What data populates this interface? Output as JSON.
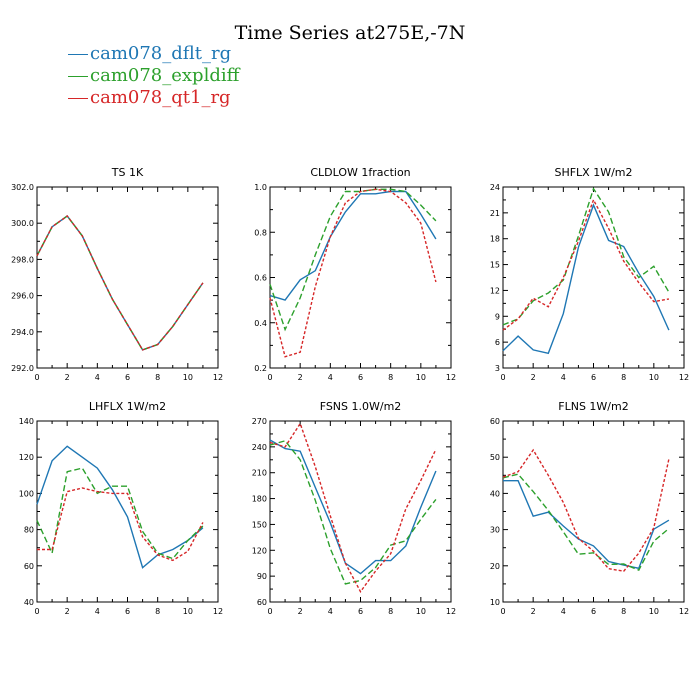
{
  "title": "Time Series at275E,-7N",
  "legend": [
    {
      "label": "cam078_dflt_rg",
      "color": "#1f77b4"
    },
    {
      "label": "cam078_expldiff",
      "color": "#2ca02c"
    },
    {
      "label": "cam078_qt1_rg",
      "color": "#d62728"
    }
  ],
  "chart_data": [
    {
      "type": "line",
      "title": "TS   1K",
      "x": [
        0,
        1,
        2,
        3,
        4,
        5,
        6,
        7,
        8,
        9,
        10,
        11
      ],
      "xticks": [
        0,
        2,
        4,
        6,
        8,
        10,
        12
      ],
      "xlim": [
        0,
        12
      ],
      "ylim": [
        292,
        302
      ],
      "yticks": [
        "292.0",
        "294.0",
        "296.0",
        "298.0",
        "300.0",
        "302.0"
      ],
      "series": [
        {
          "name": "cam078_dflt_rg",
          "values": [
            298.2,
            299.8,
            300.4,
            299.3,
            297.5,
            295.8,
            294.4,
            293.0,
            293.3,
            294.3,
            295.5,
            296.7
          ]
        },
        {
          "name": "cam078_expldiff",
          "values": [
            298.2,
            299.8,
            300.4,
            299.3,
            297.5,
            295.8,
            294.4,
            293.0,
            293.3,
            294.3,
            295.5,
            296.7
          ]
        },
        {
          "name": "cam078_qt1_rg",
          "values": [
            298.2,
            299.8,
            300.4,
            299.3,
            297.5,
            295.8,
            294.4,
            293.0,
            293.3,
            294.3,
            295.5,
            296.7
          ]
        }
      ]
    },
    {
      "type": "line",
      "title": "CLDLOW   1fraction",
      "x": [
        0,
        1,
        2,
        3,
        4,
        5,
        6,
        7,
        8,
        9,
        10,
        11
      ],
      "xticks": [
        0,
        2,
        4,
        6,
        8,
        10,
        12
      ],
      "xlim": [
        0,
        12
      ],
      "ylim": [
        0.2,
        1.0
      ],
      "yticks": [
        "0.2",
        "0.4",
        "0.6",
        "0.8",
        "1.0"
      ],
      "series": [
        {
          "name": "cam078_dflt_rg",
          "values": [
            0.52,
            0.5,
            0.59,
            0.63,
            0.78,
            0.89,
            0.97,
            0.97,
            0.98,
            0.98,
            0.88,
            0.77
          ]
        },
        {
          "name": "cam078_expldiff",
          "values": [
            0.57,
            0.37,
            0.51,
            0.7,
            0.87,
            0.98,
            0.98,
            0.99,
            0.99,
            0.98,
            0.92,
            0.85
          ]
        },
        {
          "name": "cam078_qt1_rg",
          "values": [
            0.51,
            0.25,
            0.27,
            0.56,
            0.78,
            0.93,
            0.98,
            0.99,
            0.98,
            0.93,
            0.84,
            0.58
          ]
        }
      ]
    },
    {
      "type": "line",
      "title": "SHFLX   1W/m2",
      "x": [
        0,
        1,
        2,
        3,
        4,
        5,
        6,
        7,
        8,
        9,
        10,
        11
      ],
      "xticks": [
        0,
        2,
        4,
        6,
        8,
        10,
        12
      ],
      "xlim": [
        0,
        12
      ],
      "ylim": [
        3,
        24
      ],
      "yticks": [
        "3",
        "6",
        "9",
        "12",
        "15",
        "18",
        "21",
        "24"
      ],
      "series": [
        {
          "name": "cam078_dflt_rg",
          "values": [
            5.0,
            6.7,
            5.1,
            4.7,
            9.3,
            17.0,
            21.9,
            17.8,
            17.1,
            14.0,
            11.3,
            7.4
          ]
        },
        {
          "name": "cam078_expldiff",
          "values": [
            8.0,
            8.7,
            10.8,
            11.7,
            13.2,
            18.3,
            23.8,
            21.1,
            15.9,
            13.5,
            14.8,
            11.8
          ]
        },
        {
          "name": "cam078_qt1_rg",
          "values": [
            7.4,
            8.7,
            11.1,
            10.1,
            13.5,
            17.7,
            22.5,
            19.2,
            15.4,
            12.9,
            10.7,
            11.0
          ]
        }
      ]
    },
    {
      "type": "line",
      "title": "LHFLX   1W/m2",
      "x": [
        0,
        1,
        2,
        3,
        4,
        5,
        6,
        7,
        8,
        9,
        10,
        11
      ],
      "xticks": [
        0,
        2,
        4,
        6,
        8,
        10,
        12
      ],
      "xlim": [
        0,
        12
      ],
      "ylim": [
        40,
        140
      ],
      "yticks": [
        "40",
        "60",
        "80",
        "100",
        "120",
        "140"
      ],
      "series": [
        {
          "name": "cam078_dflt_rg",
          "values": [
            94,
            118,
            126,
            120,
            114,
            102,
            87,
            59,
            66,
            69,
            74,
            81
          ]
        },
        {
          "name": "cam078_expldiff",
          "values": [
            85,
            67,
            112,
            114,
            100,
            104,
            104,
            79,
            67,
            64,
            74,
            82
          ]
        },
        {
          "name": "cam078_qt1_rg",
          "values": [
            69,
            69,
            101,
            103,
            101,
            100,
            100,
            76,
            66,
            63,
            68,
            84
          ]
        }
      ]
    },
    {
      "type": "line",
      "title": "FSNS   1.0W/m2",
      "x": [
        0,
        1,
        2,
        3,
        4,
        5,
        6,
        7,
        8,
        9,
        10,
        11
      ],
      "xticks": [
        0,
        2,
        4,
        6,
        8,
        10,
        12
      ],
      "xlim": [
        0,
        12
      ],
      "ylim": [
        60,
        270
      ],
      "yticks": [
        "60",
        "90",
        "120",
        "150",
        "180",
        "210",
        "240",
        "270"
      ],
      "series": [
        {
          "name": "cam078_dflt_rg",
          "values": [
            248,
            238,
            235,
            193,
            152,
            105,
            93,
            108,
            108,
            125,
            170,
            212
          ]
        },
        {
          "name": "cam078_expldiff",
          "values": [
            242,
            247,
            225,
            178,
            122,
            81,
            85,
            100,
            126,
            131,
            156,
            179
          ]
        },
        {
          "name": "cam078_qt1_rg",
          "values": [
            245,
            240,
            267,
            217,
            160,
            105,
            72,
            96,
            116,
            168,
            201,
            237
          ]
        }
      ]
    },
    {
      "type": "line",
      "title": "FLNS   1W/m2",
      "x": [
        0,
        1,
        2,
        3,
        4,
        5,
        6,
        7,
        8,
        9,
        10,
        11
      ],
      "xticks": [
        0,
        2,
        4,
        6,
        8,
        10,
        12
      ],
      "xlim": [
        0,
        12
      ],
      "ylim": [
        10,
        60
      ],
      "yticks": [
        "10",
        "20",
        "30",
        "40",
        "50",
        "60"
      ],
      "series": [
        {
          "name": "cam078_dflt_rg",
          "values": [
            43.5,
            43.5,
            33.7,
            34.8,
            31.0,
            27.4,
            25.5,
            21.2,
            20.2,
            19.3,
            30.1,
            32.6
          ]
        },
        {
          "name": "cam078_expldiff",
          "values": [
            44.3,
            45.3,
            40.5,
            35.3,
            29.4,
            23.2,
            23.6,
            20.4,
            20.5,
            18.8,
            26.8,
            30.3
          ]
        },
        {
          "name": "cam078_qt1_rg",
          "values": [
            44.5,
            46.0,
            52.0,
            45.0,
            37.5,
            27.6,
            24.0,
            19.2,
            18.5,
            23.5,
            30.5,
            49.5
          ]
        }
      ]
    }
  ]
}
